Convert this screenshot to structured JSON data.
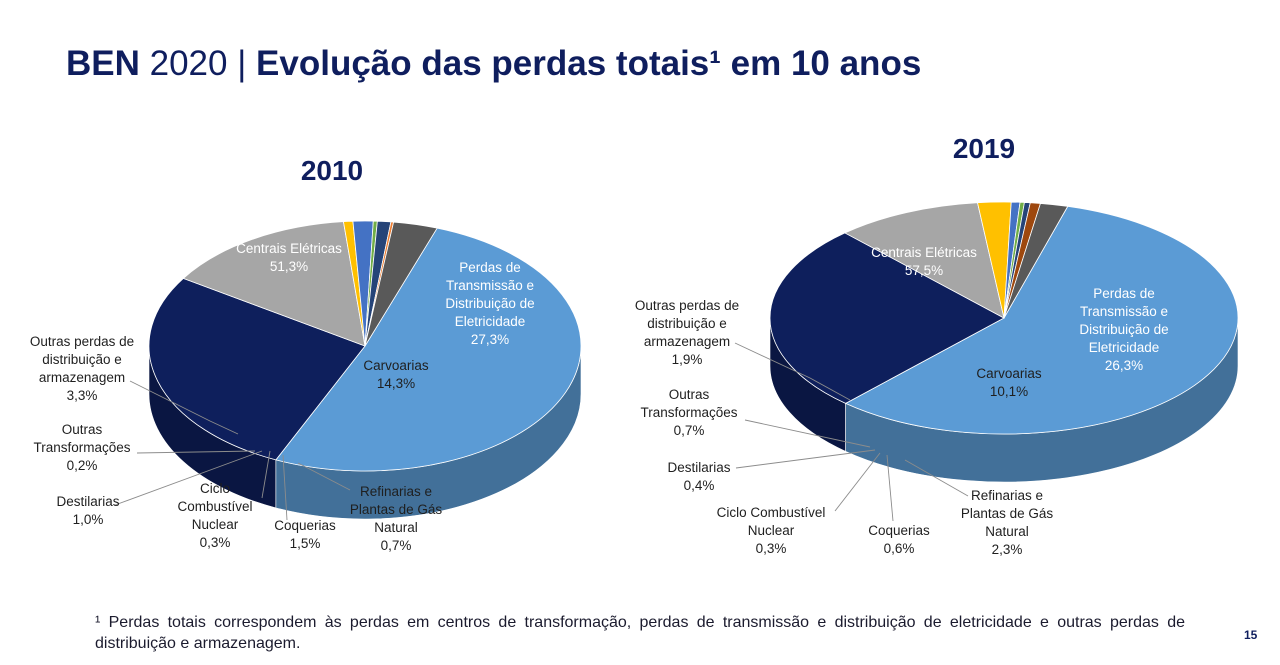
{
  "header": {
    "title_bold_a": "BEN",
    "title_regular": " 2020 | ",
    "title_bold_b": "Evolução das perdas totais¹ em 10 anos"
  },
  "chart_data": [
    {
      "type": "pie",
      "title": "2010",
      "unit": "%",
      "slices": [
        {
          "label": "Centrais Elétricas",
          "value": 51.3,
          "value_text": "51,3%",
          "color": "#5b9bd5"
        },
        {
          "label": "Perdas de Transmissão e Distribuição de Eletricidade",
          "value": 27.3,
          "value_text": "27,3%",
          "color": "#0e1f5c"
        },
        {
          "label": "Carvoarias",
          "value": 14.3,
          "value_text": "14,3%",
          "color": "#a6a6a6"
        },
        {
          "label": "Refinarias e Plantas de Gás Natural",
          "value": 0.7,
          "value_text": "0,7%",
          "color": "#ffc000"
        },
        {
          "label": "Coquerias",
          "value": 1.5,
          "value_text": "1,5%",
          "color": "#4472c4"
        },
        {
          "label": "Ciclo Combustível Nuclear",
          "value": 0.3,
          "value_text": "0,3%",
          "color": "#70ad47"
        },
        {
          "label": "Destilarias",
          "value": 1.0,
          "value_text": "1,0%",
          "color": "#264478"
        },
        {
          "label": "Outras Transformações",
          "value": 0.2,
          "value_text": "0,2%",
          "color": "#ed7d31"
        },
        {
          "label": "Outras perdas de distribuição e armazenagem",
          "value": 3.3,
          "value_text": "3,3%",
          "color": "#595959"
        }
      ]
    },
    {
      "type": "pie",
      "title": "2019",
      "unit": "%",
      "slices": [
        {
          "label": "Centrais Elétricas",
          "value": 57.5,
          "value_text": "57,5%",
          "color": "#5b9bd5"
        },
        {
          "label": "Perdas de Transmissão e Distribuição de Eletricidade",
          "value": 26.3,
          "value_text": "26,3%",
          "color": "#0e1f5c"
        },
        {
          "label": "Carvoarias",
          "value": 10.1,
          "value_text": "10,1%",
          "color": "#a6a6a6"
        },
        {
          "label": "Refinarias e Plantas de Gás Natural",
          "value": 2.3,
          "value_text": "2,3%",
          "color": "#ffc000"
        },
        {
          "label": "Coquerias",
          "value": 0.6,
          "value_text": "0,6%",
          "color": "#4472c4"
        },
        {
          "label": "Ciclo Combustível Nuclear",
          "value": 0.3,
          "value_text": "0,3%",
          "color": "#70ad47"
        },
        {
          "label": "Destilarias",
          "value": 0.4,
          "value_text": "0,4%",
          "color": "#264478"
        },
        {
          "label": "Outras Transformações",
          "value": 0.7,
          "value_text": "0,7%",
          "color": "#9e480e"
        },
        {
          "label": "Outras perdas de distribuição e armazenagem",
          "value": 1.9,
          "value_text": "1,9%",
          "color": "#595959"
        }
      ]
    }
  ],
  "footnote": "¹ Perdas totais correspondem às perdas em centros de transformação, perdas de transmissão e distribuição de eletricidade e outras perdas de distribuição e armazenagem.",
  "page_number": "15"
}
